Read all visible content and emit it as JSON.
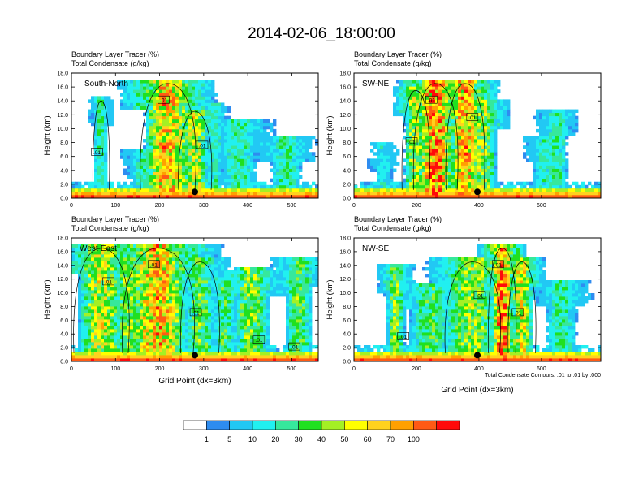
{
  "title": "2014-02-06_18:00:00",
  "colorbar": {
    "labels": [
      "1",
      "5",
      "10",
      "20",
      "30",
      "40",
      "50",
      "60",
      "70",
      "100"
    ],
    "colors": [
      "#ffffff",
      "#2e8cf0",
      "#22c8f4",
      "#21f0f0",
      "#36e89c",
      "#20e020",
      "#a4f024",
      "#ffff00",
      "#ffd21e",
      "#ffa000",
      "#ff5a14",
      "#ff0a0a"
    ]
  },
  "chart_data": [
    {
      "type": "heatmap",
      "panel": "South-North",
      "title_line1": "Boundary Layer Tracer   (%)",
      "title_line2": "Total Condensate   (g/kg)",
      "ylabel": "Height (km)",
      "xlabel": "",
      "ylim": [
        0,
        18
      ],
      "yticks": [
        "0.0",
        "2.0",
        "4.0",
        "6.0",
        "8.0",
        "10.0",
        "12.0",
        "14.0",
        "16.0",
        "18.0"
      ],
      "xlim": [
        0,
        560
      ],
      "xticks": [
        "0",
        "100",
        "200",
        "300",
        "400",
        "500"
      ],
      "contour_labels": [
        ".01",
        ".01",
        ".01"
      ],
      "marker_x": 280
    },
    {
      "type": "heatmap",
      "panel": "SW-NE",
      "title_line1": "Boundary Layer Tracer   (%)",
      "title_line2": "Total Condensate   (g/kg)",
      "ylabel": "Height (km)",
      "xlabel": "",
      "ylim": [
        0,
        18
      ],
      "yticks": [
        "0.0",
        "2.0",
        "4.0",
        "6.0",
        "8.0",
        "10.0",
        "12.0",
        "14.0",
        "16.0",
        "18.0"
      ],
      "xlim": [
        0,
        790
      ],
      "xticks": [
        "0",
        "200",
        "400",
        "600"
      ],
      "contour_labels": [
        ".01",
        ".01",
        ".01"
      ],
      "marker_x": 395
    },
    {
      "type": "heatmap",
      "panel": "West-East",
      "title_line1": "Boundary Layer Tracer   (%)",
      "title_line2": "Total Condensate   (g/kg)",
      "ylabel": "Height (km)",
      "xlabel": "Grid Point (dx=3km)",
      "ylim": [
        0,
        18
      ],
      "yticks": [
        "0.0",
        "2.0",
        "4.0",
        "6.0",
        "8.0",
        "10.0",
        "12.0",
        "14.0",
        "16.0",
        "18.0"
      ],
      "xlim": [
        0,
        560
      ],
      "xticks": [
        "0",
        "100",
        "200",
        "300",
        "400",
        "500"
      ],
      "contour_labels": [
        ".01",
        ".01",
        ".01",
        ".01",
        ".01"
      ],
      "marker_x": 280
    },
    {
      "type": "heatmap",
      "panel": "NW-SE",
      "title_line1": "Boundary Layer Tracer   (%)",
      "title_line2": "Total Condensate   (g/kg)",
      "ylabel": "Height (km)",
      "xlabel": "Grid Point (dx=3km)",
      "ylim": [
        0,
        18
      ],
      "yticks": [
        "0.0",
        "2.0",
        "4.0",
        "6.0",
        "8.0",
        "10.0",
        "12.0",
        "14.0",
        "16.0",
        "18.0"
      ],
      "xlim": [
        0,
        790
      ],
      "xticks": [
        "0",
        "200",
        "400",
        "600"
      ],
      "contour_labels": [
        ".01",
        ".01",
        ".01",
        ".01"
      ],
      "marker_x": 395,
      "footnote": "Total Condensate Contours: .01 to .01 by .000"
    }
  ]
}
